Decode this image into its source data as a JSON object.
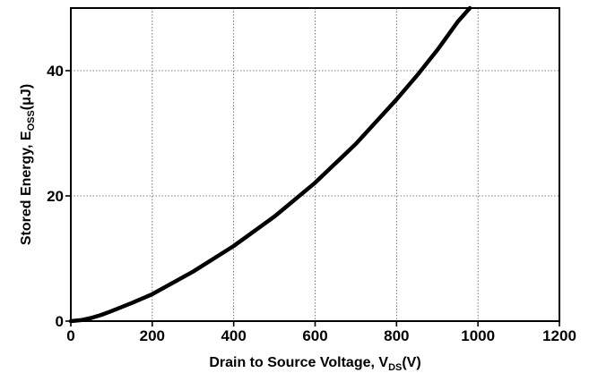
{
  "chart_data": {
    "type": "line",
    "xlabel": "Drain to Source Voltage, V",
    "xlabel_sub": "DS",
    "xlabel_unit": "(V)",
    "ylabel": "Stored Energy, E",
    "ylabel_sub": "OSS",
    "ylabel_unit": "(μJ)",
    "xlim": [
      0,
      1200
    ],
    "ylim": [
      0,
      50
    ],
    "xticks": [
      "0",
      "200",
      "400",
      "600",
      "800",
      "1000",
      "1200"
    ],
    "yticks": [
      "0",
      "20",
      "40"
    ],
    "grid": true,
    "series": [
      {
        "x": [
          0,
          25,
          50,
          75,
          100,
          150,
          200,
          300,
          400,
          500,
          600,
          700,
          800,
          850,
          900,
          950,
          980
        ],
        "y": [
          0,
          0.15,
          0.5,
          1.0,
          1.6,
          2.9,
          4.3,
          7.9,
          12.0,
          16.7,
          22.1,
          28.3,
          35.4,
          39.2,
          43.3,
          47.8,
          50
        ]
      }
    ]
  }
}
